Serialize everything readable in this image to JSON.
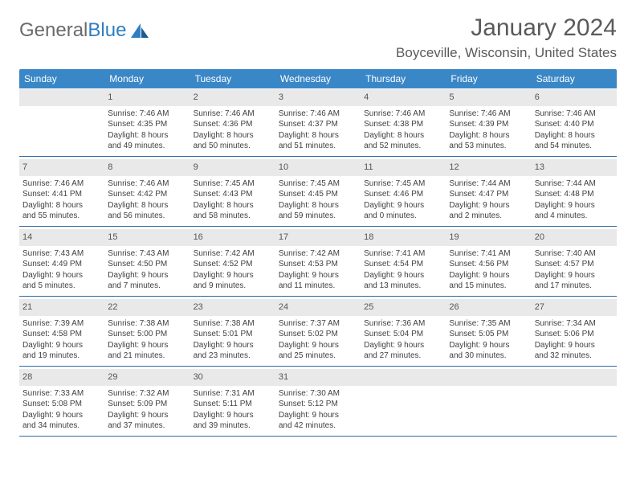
{
  "brand": {
    "word1": "General",
    "word2": "Blue"
  },
  "title": "January 2024",
  "location": "Boyceville, Wisconsin, United States",
  "colors": {
    "header_bg": "#3a87c7",
    "header_text": "#ffffff",
    "daynum_bg": "#e9e9e9",
    "row_border": "#2c6aa3",
    "body_text": "#404040",
    "title_text": "#5a5a5a",
    "logo_gray": "#6a6a6a",
    "logo_blue": "#2f7ec2"
  },
  "weekdays": [
    "Sunday",
    "Monday",
    "Tuesday",
    "Wednesday",
    "Thursday",
    "Friday",
    "Saturday"
  ],
  "weeks": [
    [
      {
        "n": "",
        "lines": []
      },
      {
        "n": "1",
        "lines": [
          "Sunrise: 7:46 AM",
          "Sunset: 4:35 PM",
          "Daylight: 8 hours",
          "and 49 minutes."
        ]
      },
      {
        "n": "2",
        "lines": [
          "Sunrise: 7:46 AM",
          "Sunset: 4:36 PM",
          "Daylight: 8 hours",
          "and 50 minutes."
        ]
      },
      {
        "n": "3",
        "lines": [
          "Sunrise: 7:46 AM",
          "Sunset: 4:37 PM",
          "Daylight: 8 hours",
          "and 51 minutes."
        ]
      },
      {
        "n": "4",
        "lines": [
          "Sunrise: 7:46 AM",
          "Sunset: 4:38 PM",
          "Daylight: 8 hours",
          "and 52 minutes."
        ]
      },
      {
        "n": "5",
        "lines": [
          "Sunrise: 7:46 AM",
          "Sunset: 4:39 PM",
          "Daylight: 8 hours",
          "and 53 minutes."
        ]
      },
      {
        "n": "6",
        "lines": [
          "Sunrise: 7:46 AM",
          "Sunset: 4:40 PM",
          "Daylight: 8 hours",
          "and 54 minutes."
        ]
      }
    ],
    [
      {
        "n": "7",
        "lines": [
          "Sunrise: 7:46 AM",
          "Sunset: 4:41 PM",
          "Daylight: 8 hours",
          "and 55 minutes."
        ]
      },
      {
        "n": "8",
        "lines": [
          "Sunrise: 7:46 AM",
          "Sunset: 4:42 PM",
          "Daylight: 8 hours",
          "and 56 minutes."
        ]
      },
      {
        "n": "9",
        "lines": [
          "Sunrise: 7:45 AM",
          "Sunset: 4:43 PM",
          "Daylight: 8 hours",
          "and 58 minutes."
        ]
      },
      {
        "n": "10",
        "lines": [
          "Sunrise: 7:45 AM",
          "Sunset: 4:45 PM",
          "Daylight: 8 hours",
          "and 59 minutes."
        ]
      },
      {
        "n": "11",
        "lines": [
          "Sunrise: 7:45 AM",
          "Sunset: 4:46 PM",
          "Daylight: 9 hours",
          "and 0 minutes."
        ]
      },
      {
        "n": "12",
        "lines": [
          "Sunrise: 7:44 AM",
          "Sunset: 4:47 PM",
          "Daylight: 9 hours",
          "and 2 minutes."
        ]
      },
      {
        "n": "13",
        "lines": [
          "Sunrise: 7:44 AM",
          "Sunset: 4:48 PM",
          "Daylight: 9 hours",
          "and 4 minutes."
        ]
      }
    ],
    [
      {
        "n": "14",
        "lines": [
          "Sunrise: 7:43 AM",
          "Sunset: 4:49 PM",
          "Daylight: 9 hours",
          "and 5 minutes."
        ]
      },
      {
        "n": "15",
        "lines": [
          "Sunrise: 7:43 AM",
          "Sunset: 4:50 PM",
          "Daylight: 9 hours",
          "and 7 minutes."
        ]
      },
      {
        "n": "16",
        "lines": [
          "Sunrise: 7:42 AM",
          "Sunset: 4:52 PM",
          "Daylight: 9 hours",
          "and 9 minutes."
        ]
      },
      {
        "n": "17",
        "lines": [
          "Sunrise: 7:42 AM",
          "Sunset: 4:53 PM",
          "Daylight: 9 hours",
          "and 11 minutes."
        ]
      },
      {
        "n": "18",
        "lines": [
          "Sunrise: 7:41 AM",
          "Sunset: 4:54 PM",
          "Daylight: 9 hours",
          "and 13 minutes."
        ]
      },
      {
        "n": "19",
        "lines": [
          "Sunrise: 7:41 AM",
          "Sunset: 4:56 PM",
          "Daylight: 9 hours",
          "and 15 minutes."
        ]
      },
      {
        "n": "20",
        "lines": [
          "Sunrise: 7:40 AM",
          "Sunset: 4:57 PM",
          "Daylight: 9 hours",
          "and 17 minutes."
        ]
      }
    ],
    [
      {
        "n": "21",
        "lines": [
          "Sunrise: 7:39 AM",
          "Sunset: 4:58 PM",
          "Daylight: 9 hours",
          "and 19 minutes."
        ]
      },
      {
        "n": "22",
        "lines": [
          "Sunrise: 7:38 AM",
          "Sunset: 5:00 PM",
          "Daylight: 9 hours",
          "and 21 minutes."
        ]
      },
      {
        "n": "23",
        "lines": [
          "Sunrise: 7:38 AM",
          "Sunset: 5:01 PM",
          "Daylight: 9 hours",
          "and 23 minutes."
        ]
      },
      {
        "n": "24",
        "lines": [
          "Sunrise: 7:37 AM",
          "Sunset: 5:02 PM",
          "Daylight: 9 hours",
          "and 25 minutes."
        ]
      },
      {
        "n": "25",
        "lines": [
          "Sunrise: 7:36 AM",
          "Sunset: 5:04 PM",
          "Daylight: 9 hours",
          "and 27 minutes."
        ]
      },
      {
        "n": "26",
        "lines": [
          "Sunrise: 7:35 AM",
          "Sunset: 5:05 PM",
          "Daylight: 9 hours",
          "and 30 minutes."
        ]
      },
      {
        "n": "27",
        "lines": [
          "Sunrise: 7:34 AM",
          "Sunset: 5:06 PM",
          "Daylight: 9 hours",
          "and 32 minutes."
        ]
      }
    ],
    [
      {
        "n": "28",
        "lines": [
          "Sunrise: 7:33 AM",
          "Sunset: 5:08 PM",
          "Daylight: 9 hours",
          "and 34 minutes."
        ]
      },
      {
        "n": "29",
        "lines": [
          "Sunrise: 7:32 AM",
          "Sunset: 5:09 PM",
          "Daylight: 9 hours",
          "and 37 minutes."
        ]
      },
      {
        "n": "30",
        "lines": [
          "Sunrise: 7:31 AM",
          "Sunset: 5:11 PM",
          "Daylight: 9 hours",
          "and 39 minutes."
        ]
      },
      {
        "n": "31",
        "lines": [
          "Sunrise: 7:30 AM",
          "Sunset: 5:12 PM",
          "Daylight: 9 hours",
          "and 42 minutes."
        ]
      },
      {
        "n": "",
        "lines": []
      },
      {
        "n": "",
        "lines": []
      },
      {
        "n": "",
        "lines": []
      }
    ]
  ]
}
